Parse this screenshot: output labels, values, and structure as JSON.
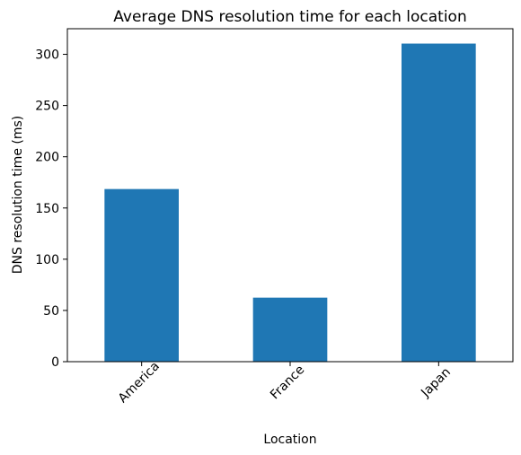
{
  "chart_data": {
    "type": "bar",
    "title": "Average DNS resolution time for each location",
    "xlabel": "Location",
    "ylabel": "DNS resolution time (ms)",
    "categories": [
      "America",
      "France",
      "Japan"
    ],
    "values": [
      168.5,
      62.5,
      310.5
    ],
    "ylim": [
      0,
      325
    ],
    "yticks": [
      0,
      50,
      100,
      150,
      200,
      250,
      300
    ],
    "grid": false,
    "legend": "none",
    "bar_color": "#1f77b4"
  }
}
